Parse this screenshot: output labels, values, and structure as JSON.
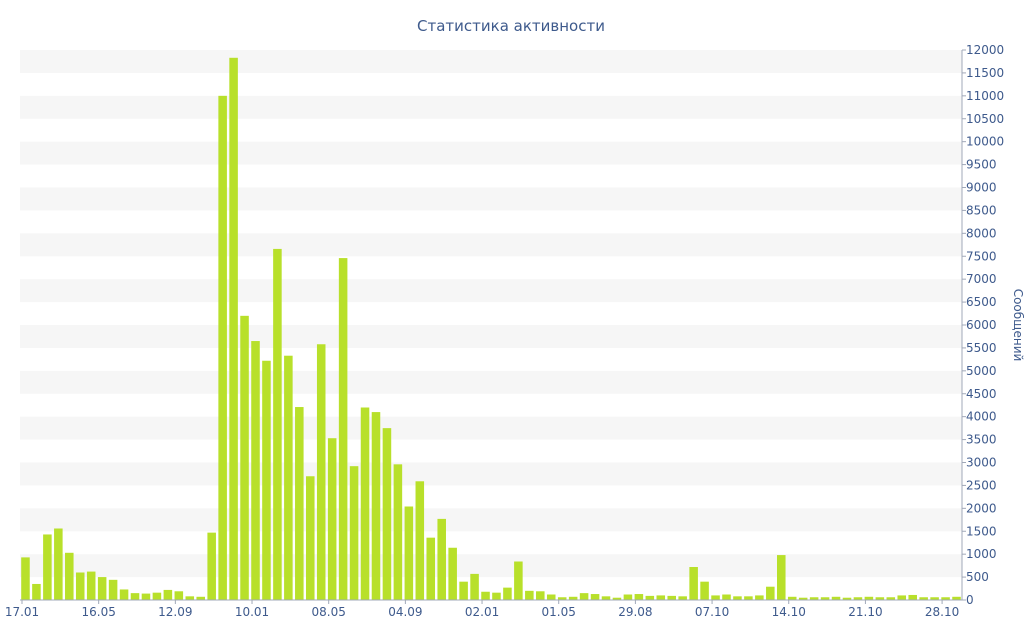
{
  "chart_data": {
    "type": "bar",
    "title": "Статистика активности",
    "ylabel": "Сообщений",
    "xlabel": "",
    "ylim": [
      0,
      12000
    ],
    "y_tick_step": 500,
    "y_axis_position": "right",
    "grid": "alternating-bands",
    "legend": "none",
    "x_tick_labels": [
      "17.01",
      "16.05",
      "12.09",
      "10.01",
      "08.05",
      "04.09",
      "02.01",
      "01.05",
      "29.08",
      "07.10",
      "14.10",
      "21.10",
      "28.10"
    ],
    "x_tick_bar_index": [
      0,
      7,
      14,
      21,
      28,
      35,
      42,
      49,
      56,
      63,
      70,
      77,
      84
    ],
    "values": [
      930,
      350,
      1430,
      1560,
      1030,
      600,
      620,
      500,
      440,
      230,
      150,
      140,
      160,
      220,
      190,
      80,
      70,
      1470,
      11000,
      11830,
      6200,
      5650,
      5220,
      7660,
      5330,
      4210,
      2700,
      5580,
      3530,
      7460,
      2920,
      4200,
      4100,
      3750,
      2960,
      2040,
      2590,
      1360,
      1770,
      1140,
      400,
      570,
      180,
      160,
      270,
      840,
      200,
      190,
      120,
      60,
      70,
      150,
      130,
      80,
      50,
      120,
      130,
      90,
      100,
      90,
      80,
      720,
      400,
      100,
      120,
      80,
      80,
      100,
      290,
      980,
      70,
      50,
      60,
      60,
      70,
      50,
      60,
      70,
      60,
      60,
      100,
      110,
      60,
      60,
      60,
      70
    ]
  },
  "colors": {
    "bar": "#b8e02a",
    "text": "#3e5a8c",
    "band": "#f6f6f6",
    "axis": "#a0a8b8"
  }
}
